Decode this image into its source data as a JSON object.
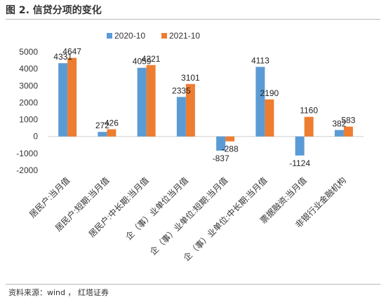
{
  "figure": {
    "title": "图 2. 信贷分项的变化",
    "source": "资料来源：wind ， 红塔证券"
  },
  "colors": {
    "series_a": "#5b9bd5",
    "series_b": "#ed7d31"
  },
  "chart_data": {
    "type": "bar",
    "title": "",
    "xlabel": "",
    "ylabel": "",
    "ylim": [
      -2000,
      5000
    ],
    "yticks": [
      -2000,
      -1000,
      0,
      1000,
      2000,
      3000,
      4000,
      5000
    ],
    "grid": false,
    "legend_position": "top",
    "categories": [
      "居民户:当月值",
      "居民户:短期:当月值",
      "居民户:中长期:当月值",
      "企（事）业单位当月值",
      "企（事）业单位:短期:当月值",
      "企（事）业单位:中长期:当月值",
      "票据融资:当月值",
      "非银行业金融机构"
    ],
    "series": [
      {
        "name": "2020-10",
        "values": [
          4331,
          272,
          4059,
          2335,
          -837,
          4113,
          -1124,
          382
        ]
      },
      {
        "name": "2021-10",
        "values": [
          4647,
          426,
          4221,
          3101,
          -288,
          2190,
          1160,
          583
        ]
      }
    ]
  }
}
